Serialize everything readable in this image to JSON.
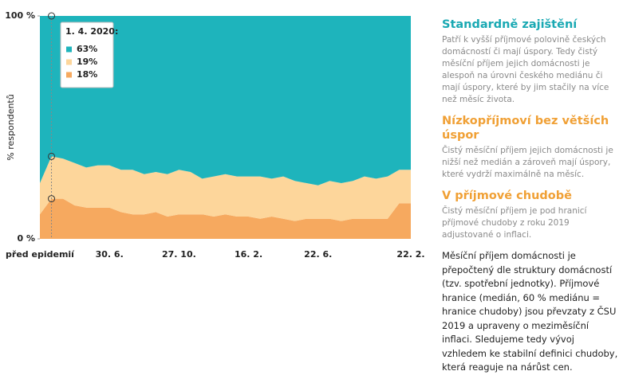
{
  "chart_data": {
    "type": "stacked_area",
    "y_label": "% respondentů",
    "ylim": [
      0,
      100
    ],
    "yticks": [
      {
        "value": 0,
        "label": "0 %"
      },
      {
        "value": 100,
        "label": "100 %"
      }
    ],
    "categories": [
      "před epidemií",
      null,
      null,
      null,
      null,
      null,
      "30. 6.",
      null,
      null,
      null,
      null,
      null,
      "27. 10.",
      null,
      null,
      null,
      null,
      null,
      "16. 2.",
      null,
      null,
      null,
      null,
      null,
      "22. 6.",
      null,
      null,
      null,
      null,
      null,
      null,
      null,
      "22. 2."
    ],
    "series": [
      {
        "name": "V příjmové chudobě",
        "color": "#f6a95f",
        "heading_color": "#f0a035",
        "values": [
          11,
          18,
          18,
          15,
          14,
          14,
          14,
          12,
          11,
          11,
          12,
          10,
          11,
          11,
          11,
          10,
          11,
          10,
          10,
          9,
          10,
          9,
          8,
          9,
          9,
          9,
          8,
          9,
          9,
          9,
          9,
          16,
          16
        ]
      },
      {
        "name": "Nízkopříjmoví bez větších úspor",
        "color": "#fdd69b",
        "heading_color": "#f0a035",
        "values": [
          14,
          19,
          18,
          19,
          18,
          19,
          19,
          19,
          20,
          18,
          18,
          19,
          20,
          19,
          16,
          18,
          18,
          18,
          18,
          19,
          17,
          19,
          18,
          16,
          15,
          17,
          17,
          17,
          19,
          18,
          19,
          15,
          15
        ]
      },
      {
        "name": "Standardně zajištění",
        "color": "#1eb4bc",
        "heading_color": "#1aa9b3",
        "values": [
          75,
          63,
          64,
          66,
          68,
          67,
          67,
          69,
          69,
          71,
          70,
          71,
          69,
          70,
          73,
          72,
          71,
          72,
          72,
          72,
          73,
          72,
          74,
          75,
          76,
          74,
          75,
          74,
          72,
          73,
          72,
          69,
          69
        ]
      }
    ],
    "tooltip": {
      "title": "1. 4. 2020:",
      "labels": [
        "63%",
        "19%",
        "18%"
      ]
    },
    "sidebar": {
      "descriptions": [
        "Čistý měsíční příjem je pod hranicí příjmové chudoby z roku 2019 adjustované o inflaci.",
        "Čistý měsíční příjem jejich domácnosti je nižší než medián a zároveň mají úspory, které vydrží maximálně na měsíc.",
        "Patří k vyšší příjmové polovině českých domácností či mají úspory. Tedy čistý měsíční příjem jejich domácnosti je alespoň na úrovni českého mediánu či mají úspory, které by jim stačily na více než měsíc života."
      ],
      "note": "Měsíční příjem domácnosti je přepočtený dle struktury domácností (tzv. spotřební jednotky). Příjmové hranice (medián, 60 % mediánu = hranice chudoby) jsou převzaty z ČSU 2019 a upraveny o meziměsíční inflaci. Sledujeme tedy vývoj vzhledem ke stabilní definici chudoby, která reaguje na nárůst cen."
    }
  }
}
